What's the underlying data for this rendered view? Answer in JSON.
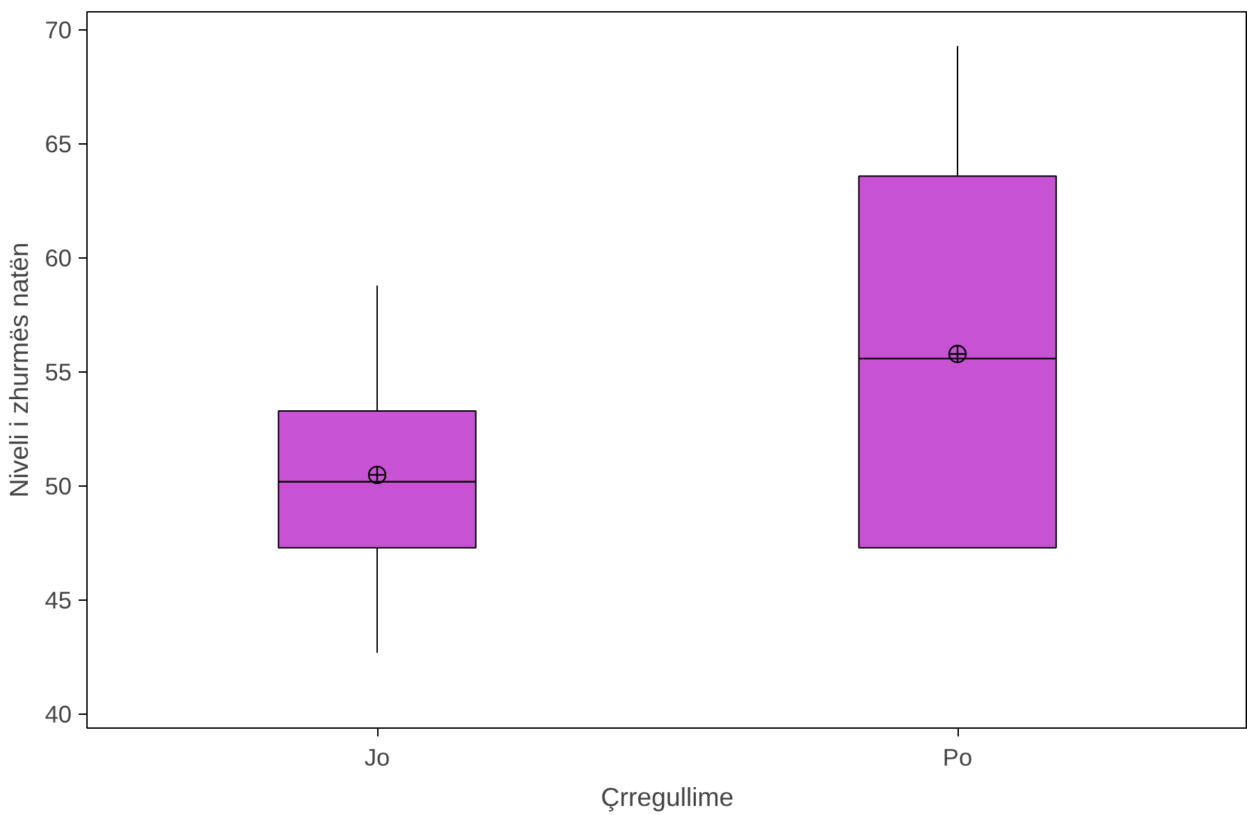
{
  "chart_data": {
    "type": "box",
    "xlabel": "Çrregullime",
    "ylabel": "Niveli i zhurmës natën",
    "categories": [
      "Jo",
      "Po"
    ],
    "boxes": [
      {
        "low": 42.7,
        "q1": 47.3,
        "median": 50.2,
        "q3": 53.3,
        "high": 58.8,
        "mean": 50.5
      },
      {
        "low": 47.3,
        "q1": 47.3,
        "median": 55.6,
        "q3": 63.6,
        "high": 69.3,
        "mean": 55.8
      }
    ],
    "color": "#c852d4",
    "ylim": [
      39.4,
      70.8
    ],
    "yticks": [
      40,
      45,
      50,
      55,
      60,
      65,
      70
    ],
    "grid": false
  }
}
